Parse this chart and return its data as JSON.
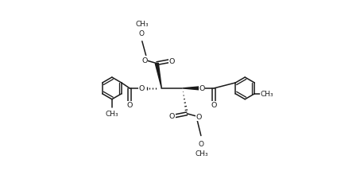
{
  "bg_color": "#ffffff",
  "line_color": "#1a1a1a",
  "lw": 1.1,
  "figsize": [
    4.58,
    2.26
  ],
  "dpi": 100,
  "c1": [
    0.385,
    0.505
  ],
  "c2": [
    0.495,
    0.505
  ],
  "ring_r": 0.06
}
